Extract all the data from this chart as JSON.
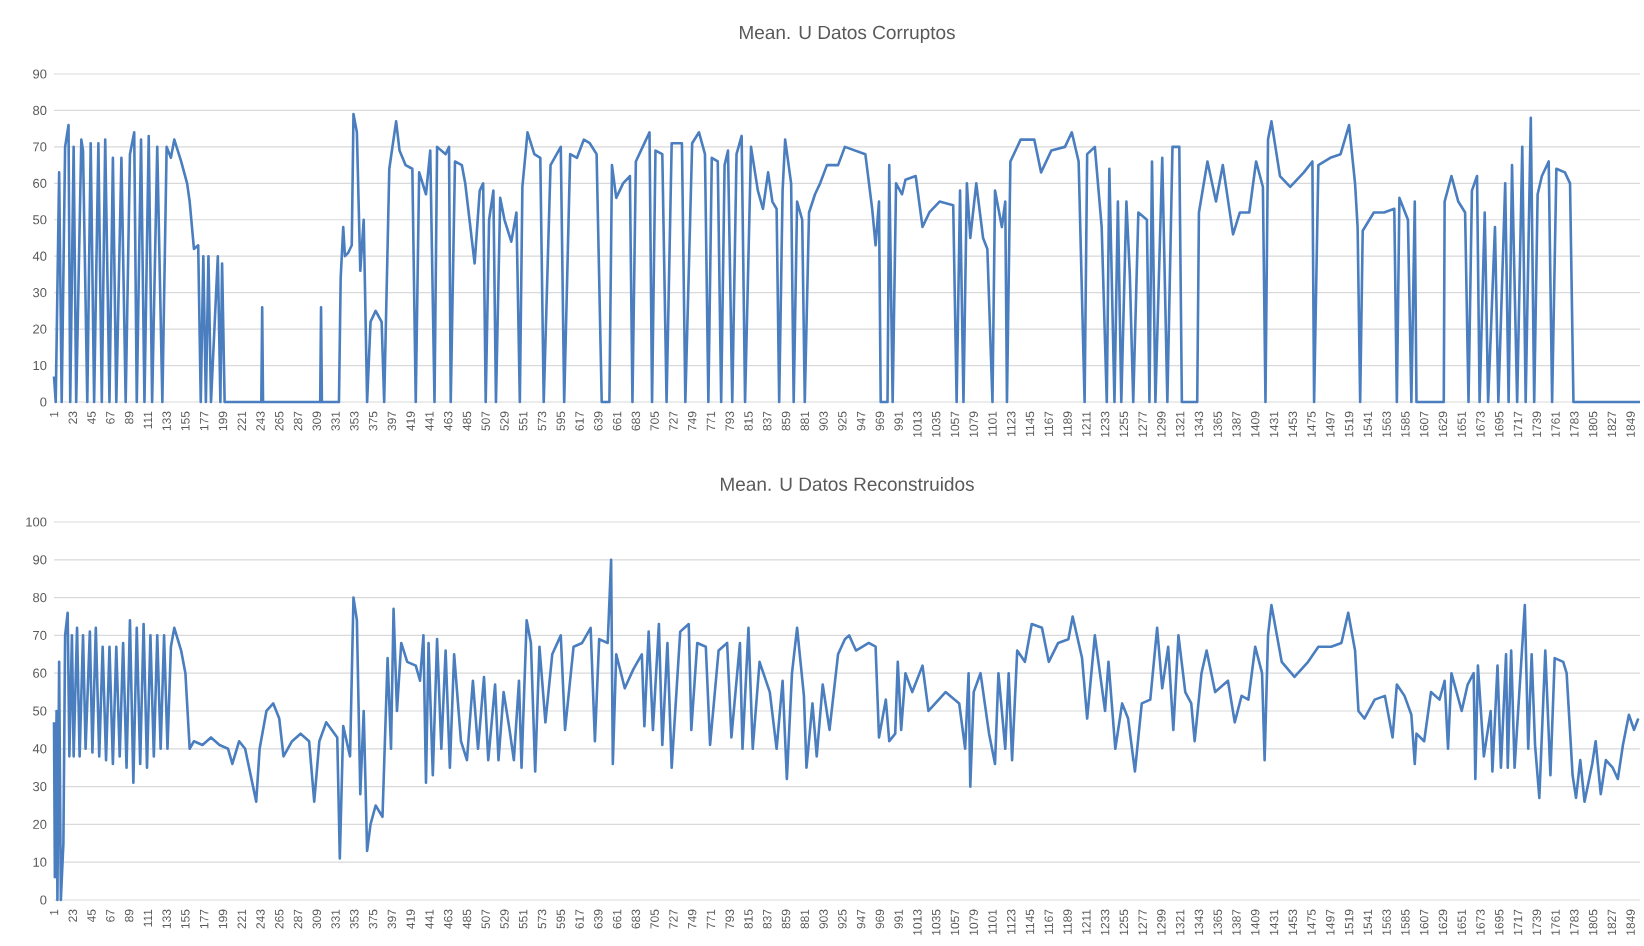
{
  "chart_data": [
    {
      "type": "line",
      "title": "Mean. U Datos Corruptos",
      "color": "#4a7ebf",
      "grid": "y",
      "xlim": [
        1,
        1860
      ],
      "ylim": [
        0,
        90
      ],
      "yticks": [
        0,
        10,
        20,
        30,
        40,
        50,
        60,
        70,
        80,
        90
      ],
      "xticks": [
        1,
        23,
        45,
        67,
        89,
        111,
        133,
        155,
        177,
        199,
        221,
        243,
        265,
        287,
        309,
        331,
        353,
        375,
        397,
        419,
        441,
        463,
        485,
        507,
        529,
        551,
        573,
        595,
        617,
        639,
        661,
        683,
        705,
        727,
        749,
        771,
        793,
        815,
        837,
        859,
        881,
        903,
        925,
        947,
        969,
        991,
        1013,
        1035,
        1057,
        1079,
        1101,
        1123,
        1145,
        1167,
        1189,
        1211,
        1233,
        1255,
        1277,
        1299,
        1321,
        1343,
        1365,
        1387,
        1409,
        1431,
        1453,
        1475,
        1497,
        1519,
        1541,
        1563,
        1585,
        1607,
        1629,
        1651,
        1673,
        1695,
        1717,
        1739,
        1761,
        1783,
        1805,
        1827,
        1849
      ],
      "x": [
        1,
        3,
        7,
        10,
        14,
        18,
        20,
        24,
        27,
        33,
        35,
        40,
        44,
        48,
        53,
        57,
        61,
        66,
        70,
        74,
        80,
        85,
        90,
        95,
        98,
        103,
        107,
        112,
        116,
        122,
        128,
        133,
        138,
        142,
        150,
        157,
        160,
        165,
        170,
        173,
        176,
        179,
        182,
        185,
        193,
        196,
        198,
        201,
        244,
        245,
        246,
        313,
        314,
        315,
        335,
        337,
        340,
        342,
        346,
        350,
        352,
        356,
        360,
        364,
        368,
        372,
        378,
        385,
        388,
        394,
        402,
        406,
        413,
        421,
        425,
        429,
        437,
        442,
        447,
        450,
        460,
        464,
        466,
        471,
        479,
        483,
        488,
        494,
        500,
        504,
        507,
        511,
        516,
        519,
        524,
        529,
        537,
        543,
        547,
        550,
        556,
        564,
        571,
        575,
        583,
        595,
        599,
        606,
        614,
        622,
        629,
        637,
        643,
        652,
        655,
        660,
        668,
        676,
        679,
        683,
        691,
        699,
        702,
        706,
        714,
        719,
        725,
        737,
        741,
        749,
        757,
        764,
        768,
        772,
        779,
        783,
        787,
        791,
        796,
        801,
        807,
        811,
        818,
        826,
        832,
        838,
        843,
        848,
        851,
        855,
        858,
        865,
        868,
        872,
        878,
        881,
        886,
        893,
        899,
        907,
        920,
        928,
        952,
        960,
        964,
        968,
        970,
        978,
        980,
        984,
        988,
        995,
        999,
        1011,
        1019,
        1027,
        1039,
        1055,
        1059,
        1063,
        1067,
        1071,
        1075,
        1082,
        1090,
        1095,
        1101,
        1104,
        1112,
        1116,
        1118,
        1122,
        1134,
        1150,
        1158,
        1170,
        1186,
        1194,
        1202,
        1209,
        1212,
        1221,
        1229,
        1235,
        1238,
        1244,
        1248,
        1252,
        1258,
        1262,
        1266,
        1272,
        1282,
        1285,
        1288,
        1292,
        1300,
        1306,
        1312,
        1320,
        1323,
        1341,
        1343,
        1353,
        1363,
        1371,
        1383,
        1391,
        1402,
        1410,
        1418,
        1421,
        1424,
        1428,
        1438,
        1450,
        1466,
        1476,
        1478,
        1483,
        1497,
        1509,
        1519,
        1526,
        1529,
        1532,
        1535,
        1548,
        1560,
        1572,
        1575,
        1578,
        1588,
        1592,
        1596,
        1598,
        1630,
        1631,
        1639,
        1647,
        1655,
        1659,
        1663,
        1669,
        1672,
        1678,
        1682,
        1690,
        1694,
        1702,
        1706,
        1710,
        1716,
        1722,
        1726,
        1732,
        1736,
        1740,
        1745,
        1753,
        1757,
        1762,
        1772,
        1778,
        1782,
        1860
      ],
      "values": [
        7,
        0,
        63,
        0,
        70,
        76,
        0,
        70,
        0,
        72,
        69,
        0,
        71,
        0,
        71,
        0,
        72,
        0,
        67,
        0,
        67,
        0,
        68,
        74,
        0,
        72,
        0,
        73,
        0,
        70,
        0,
        70,
        67,
        72,
        66,
        60,
        55,
        42,
        43,
        0,
        40,
        0,
        40,
        0,
        40,
        0,
        38,
        0,
        0,
        26,
        0,
        0,
        26,
        0,
        0,
        34,
        48,
        40,
        41,
        43,
        79,
        74,
        36,
        50,
        0,
        22,
        25,
        22,
        0,
        64,
        77,
        69,
        65,
        64,
        0,
        63,
        57,
        69,
        0,
        70,
        68,
        70,
        0,
        66,
        65,
        60,
        50,
        38,
        58,
        60,
        0,
        50,
        58,
        0,
        56,
        50,
        44,
        52,
        0,
        59,
        74,
        68,
        67,
        0,
        65,
        70,
        0,
        68,
        67,
        72,
        71,
        68,
        0,
        0,
        65,
        56,
        60,
        62,
        0,
        66,
        70,
        74,
        0,
        69,
        68,
        0,
        71,
        71,
        0,
        71,
        74,
        68,
        0,
        67,
        66,
        0,
        65,
        69,
        0,
        68,
        73,
        0,
        70,
        58,
        53,
        63,
        55,
        53,
        0,
        58,
        72,
        60,
        0,
        55,
        50,
        0,
        52,
        57,
        60,
        65,
        65,
        70,
        68,
        53,
        43,
        55,
        0,
        0,
        65,
        0,
        60,
        57,
        61,
        62,
        48,
        52,
        55,
        54,
        0,
        58,
        0,
        60,
        45,
        60,
        45,
        42,
        0,
        58,
        48,
        55,
        0,
        66,
        72,
        72,
        63,
        69,
        70,
        74,
        66,
        0,
        68,
        70,
        48,
        0,
        64,
        0,
        55,
        0,
        55,
        35,
        0,
        52,
        50,
        0,
        66,
        0,
        67,
        0,
        70,
        70,
        0,
        0,
        52,
        66,
        55,
        65,
        46,
        52,
        52,
        66,
        59,
        0,
        72,
        77,
        62,
        59,
        63,
        66,
        0,
        65,
        67,
        68,
        76,
        60,
        48,
        0,
        47,
        52,
        52,
        53,
        0,
        56,
        50,
        0,
        55,
        0,
        0,
        55,
        62,
        55,
        52,
        0,
        58,
        62,
        0,
        52,
        0,
        48,
        0,
        60,
        0,
        65,
        0,
        70,
        0,
        78,
        0,
        57,
        62,
        66,
        0,
        64,
        63,
        60,
        0,
        0
      ]
    },
    {
      "type": "line",
      "title": "Mean. U Datos Reconstruidos",
      "color": "#4a7ebf",
      "grid": "y",
      "xlim": [
        1,
        1860
      ],
      "ylim": [
        0,
        100
      ],
      "yticks": [
        0,
        10,
        20,
        30,
        40,
        50,
        60,
        70,
        80,
        90,
        100
      ],
      "xticks": [
        1,
        23,
        45,
        67,
        89,
        111,
        133,
        155,
        177,
        199,
        221,
        243,
        265,
        287,
        309,
        331,
        353,
        375,
        397,
        419,
        441,
        463,
        485,
        507,
        529,
        551,
        573,
        595,
        617,
        639,
        661,
        683,
        705,
        727,
        749,
        771,
        793,
        815,
        837,
        859,
        881,
        903,
        925,
        947,
        969,
        991,
        1013,
        1035,
        1057,
        1079,
        1101,
        1123,
        1145,
        1167,
        1189,
        1211,
        1233,
        1255,
        1277,
        1299,
        1321,
        1343,
        1365,
        1387,
        1409,
        1431,
        1453,
        1475,
        1497,
        1519,
        1541,
        1563,
        1585,
        1607,
        1629,
        1651,
        1673,
        1695,
        1717,
        1739,
        1761,
        1783,
        1805,
        1827,
        1849
      ],
      "x": [
        1,
        2,
        4,
        5,
        7,
        9,
        12,
        14,
        17,
        19,
        22,
        24,
        28,
        31,
        35,
        38,
        43,
        46,
        50,
        54,
        58,
        62,
        66,
        70,
        74,
        78,
        82,
        86,
        90,
        94,
        98,
        102,
        106,
        110,
        114,
        118,
        122,
        126,
        130,
        134,
        138,
        142,
        150,
        155,
        160,
        165,
        175,
        185,
        195,
        205,
        210,
        218,
        225,
        238,
        242,
        250,
        258,
        265,
        270,
        280,
        290,
        300,
        306,
        312,
        320,
        333,
        336,
        340,
        348,
        352,
        356,
        360,
        364,
        368,
        372,
        378,
        386,
        392,
        396,
        399,
        403,
        408,
        415,
        425,
        430,
        434,
        437,
        440,
        445,
        450,
        455,
        460,
        465,
        470,
        478,
        485,
        492,
        498,
        505,
        510,
        518,
        522,
        528,
        535,
        540,
        546,
        549,
        555,
        560,
        565,
        570,
        577,
        585,
        595,
        600,
        610,
        620,
        630,
        635,
        640,
        650,
        654,
        656,
        660,
        670,
        680,
        690,
        693,
        698,
        703,
        710,
        714,
        720,
        725,
        735,
        745,
        748,
        755,
        765,
        770,
        780,
        790,
        795,
        805,
        808,
        815,
        820,
        828,
        840,
        848,
        855,
        860,
        866,
        872,
        880,
        883,
        890,
        895,
        902,
        910,
        920,
        928,
        933,
        941,
        956,
        964,
        968,
        976,
        980,
        987,
        990,
        994,
        999,
        1007,
        1019,
        1026,
        1034,
        1046,
        1062,
        1069,
        1073,
        1075,
        1079,
        1087,
        1097,
        1104,
        1108,
        1116,
        1120,
        1124,
        1130,
        1139,
        1147,
        1159,
        1167,
        1178,
        1190,
        1195,
        1206,
        1212,
        1221,
        1233,
        1237,
        1245,
        1253,
        1260,
        1268,
        1276,
        1286,
        1294,
        1300,
        1307,
        1313,
        1319,
        1327,
        1334,
        1338,
        1346,
        1352,
        1362,
        1377,
        1385,
        1393,
        1401,
        1409,
        1417,
        1420,
        1424,
        1428,
        1440,
        1455,
        1471,
        1483,
        1498,
        1510,
        1518,
        1526,
        1530,
        1537,
        1549,
        1561,
        1570,
        1575,
        1584,
        1592,
        1596,
        1598,
        1607,
        1615,
        1625,
        1631,
        1635,
        1639,
        1651,
        1658,
        1665,
        1667,
        1670,
        1677,
        1685,
        1687,
        1693,
        1697,
        1703,
        1705,
        1709,
        1713,
        1725,
        1729,
        1733,
        1737,
        1742,
        1749,
        1755,
        1760,
        1770,
        1774,
        1781,
        1785,
        1790,
        1795,
        1804,
        1808,
        1814,
        1820,
        1828,
        1834,
        1840,
        1847,
        1853,
        1858
      ],
      "values": [
        47,
        6,
        50,
        0,
        63,
        0,
        15,
        70,
        76,
        38,
        70,
        38,
        72,
        38,
        70,
        40,
        71,
        39,
        72,
        38,
        67,
        37,
        67,
        36,
        67,
        38,
        68,
        35,
        74,
        31,
        72,
        36,
        73,
        35,
        70,
        38,
        70,
        40,
        70,
        40,
        67,
        72,
        66,
        60,
        40,
        42,
        41,
        43,
        41,
        40,
        36,
        42,
        40,
        26,
        40,
        50,
        52,
        48,
        38,
        42,
        44,
        42,
        26,
        42,
        47,
        43,
        11,
        46,
        38,
        80,
        74,
        28,
        50,
        13,
        20,
        25,
        22,
        64,
        40,
        77,
        50,
        68,
        63,
        62,
        58,
        70,
        31,
        68,
        33,
        69,
        40,
        66,
        35,
        65,
        42,
        37,
        58,
        40,
        59,
        37,
        57,
        37,
        55,
        45,
        37,
        58,
        35,
        74,
        68,
        34,
        67,
        47,
        65,
        70,
        45,
        67,
        68,
        72,
        42,
        69,
        68,
        90,
        36,
        65,
        56,
        61,
        65,
        46,
        71,
        45,
        73,
        41,
        68,
        35,
        71,
        73,
        45,
        68,
        67,
        41,
        66,
        68,
        43,
        68,
        40,
        72,
        40,
        63,
        55,
        40,
        58,
        32,
        60,
        72,
        54,
        35,
        52,
        38,
        57,
        45,
        65,
        69,
        70,
        66,
        68,
        67,
        43,
        53,
        42,
        44,
        63,
        45,
        60,
        55,
        62,
        50,
        52,
        55,
        52,
        40,
        60,
        30,
        55,
        60,
        44,
        36,
        60,
        40,
        60,
        37,
        66,
        63,
        73,
        72,
        63,
        68,
        69,
        75,
        64,
        48,
        70,
        50,
        63,
        40,
        52,
        48,
        34,
        52,
        53,
        72,
        56,
        67,
        45,
        70,
        55,
        52,
        42,
        60,
        66,
        55,
        58,
        47,
        54,
        53,
        67,
        60,
        37,
        70,
        78,
        63,
        59,
        63,
        67,
        67,
        68,
        76,
        66,
        50,
        48,
        53,
        54,
        43,
        57,
        54,
        49,
        36,
        44,
        42,
        55,
        53,
        58,
        40,
        60,
        50,
        57,
        60,
        32,
        62,
        38,
        50,
        34,
        62,
        35,
        65,
        35,
        66,
        35,
        78,
        40,
        65,
        41,
        27,
        66,
        33,
        64,
        63,
        60,
        33,
        27,
        37,
        26,
        36,
        42,
        28,
        37,
        35,
        32,
        41,
        49,
        45,
        48
      ]
    }
  ]
}
